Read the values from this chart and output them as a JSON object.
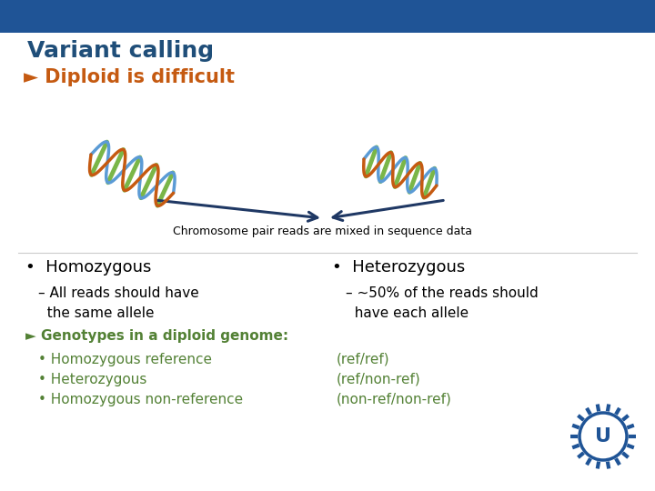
{
  "title": "Variant calling",
  "title_color": "#1F4E79",
  "title_fontsize": 18,
  "header_bar_color": "#1F5496",
  "header_bar_height": 0.072,
  "background_color": "#FFFFFF",
  "bullet1_text": "Ø Diploid is difficult",
  "bullet1_color": "#C55A11",
  "bullet1_fontsize": 15,
  "chromosome_caption": "Chromosome pair reads are mixed in sequence data",
  "chromosome_caption_color": "#000000",
  "chromosome_caption_fontsize": 9,
  "col1_bullet": "Homozygous",
  "col1_sub": "– All reads should have\n  the same allele",
  "col2_bullet": "Heterozygous",
  "col2_sub": "– ~50% of the reads should\n  have each allele",
  "bullet_color": "#000000",
  "bullet_fontsize": 13,
  "sub_fontsize": 11,
  "green_header": "Ø Genotypes in a diploid genome:",
  "green_color": "#538135",
  "green_fontsize": 11,
  "green_items": [
    [
      "• Homozygous reference",
      "(ref/ref)"
    ],
    [
      "• Heterozygous",
      "(ref/non-ref)"
    ],
    [
      "• Homozygous non-reference",
      "(non-ref/non-ref)"
    ]
  ],
  "green_item_fontsize": 11,
  "arrow_color": "#1F3864",
  "logo_color": "#1F5496"
}
